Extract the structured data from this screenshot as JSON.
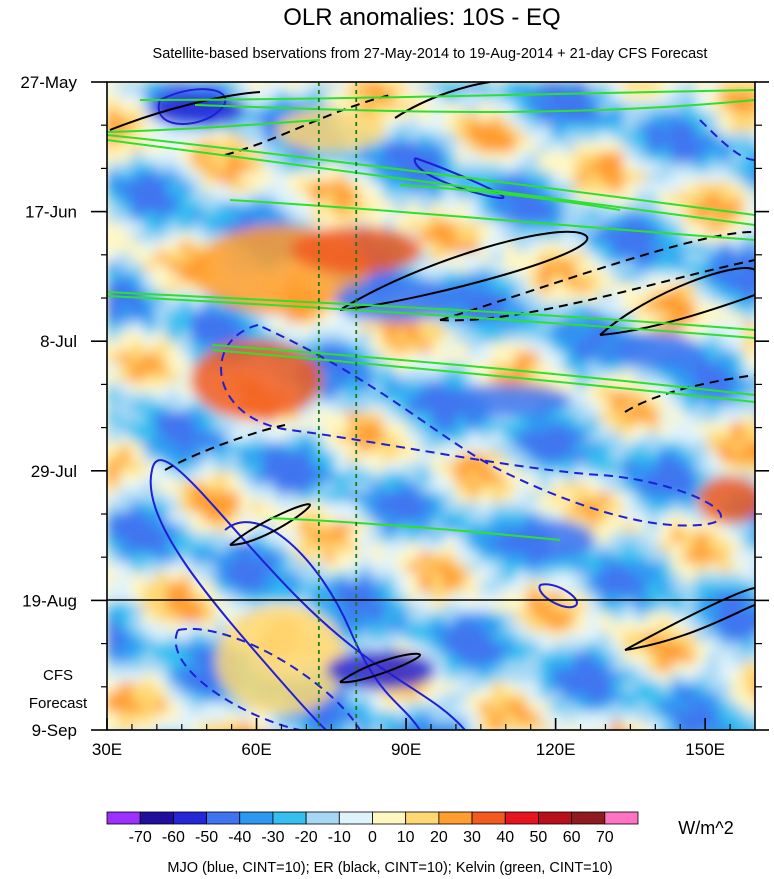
{
  "chart_data": {
    "type": "heatmap",
    "title": "OLR anomalies: 10S - EQ",
    "subtitle": "Satellite-based bservations from 27-May-2014 to 19-Aug-2014 + 21-day CFS Forecast",
    "x_ticks": [
      {
        "value": 30,
        "label": "30E"
      },
      {
        "value": 60,
        "label": "60E"
      },
      {
        "value": 90,
        "label": "90E"
      },
      {
        "value": 120,
        "label": "120E"
      },
      {
        "value": 150,
        "label": "150E"
      }
    ],
    "xlim": [
      30,
      160
    ],
    "y_ticks": [
      {
        "value": "2014-05-27",
        "label": "27-May"
      },
      {
        "value": "2014-06-17",
        "label": "17-Jun"
      },
      {
        "value": "2014-07-08",
        "label": "8-Jul"
      },
      {
        "value": "2014-07-29",
        "label": "29-Jul"
      },
      {
        "value": "2014-08-19",
        "label": "19-Aug"
      },
      {
        "value": "2014-09-09",
        "label": "9-Sep"
      }
    ],
    "ylim": [
      "2014-05-27",
      "2014-09-09"
    ],
    "observation_end": "2014-08-19",
    "forecast_label": [
      "CFS",
      "Forecast"
    ],
    "reference_longitudes": [
      72.5,
      80
    ],
    "colorbar": {
      "labels": [
        "-70",
        "-60",
        "-50",
        "-40",
        "-30",
        "-20",
        "-10",
        "0",
        "10",
        "20",
        "30",
        "40",
        "50",
        "60",
        "70"
      ],
      "colors": [
        "#9b30ff",
        "#1f0f9c",
        "#2626d6",
        "#3f74f0",
        "#2d98f2",
        "#34bff0",
        "#a6d8f5",
        "#dff3fb",
        "#fff7c2",
        "#ffd873",
        "#ff9d2e",
        "#f25a1f",
        "#e6141f",
        "#b8101a",
        "#8f1b20",
        "#ff73c3"
      ],
      "units": "W/m^2"
    },
    "contour_legend": "MJO (blue, CINT=10); ER (black, CINT=10); Kelvin (green, CINT=10)",
    "colors": {
      "mjo": "#1f1fd6",
      "er": "#000000",
      "kelvin": "#2ee02e",
      "ref_line": "#1a7a1a"
    }
  }
}
